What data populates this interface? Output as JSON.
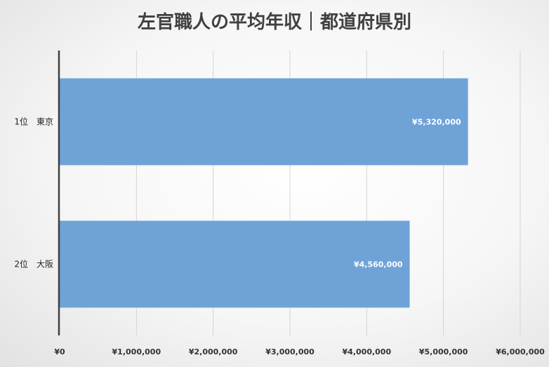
{
  "chart_data": {
    "type": "bar",
    "orientation": "horizontal",
    "title": "左官職人の平均年収｜都道府県別",
    "categories": [
      "1位　東京",
      "2位　大阪"
    ],
    "series": [
      {
        "values": [
          5320000,
          4560000
        ],
        "data_labels": [
          "¥5,320,000",
          "¥4,560,000"
        ]
      }
    ],
    "xlim": [
      0,
      6000000
    ],
    "x_ticks": [
      0,
      1000000,
      2000000,
      3000000,
      4000000,
      5000000,
      6000000
    ],
    "x_tick_labels": [
      "¥0",
      "¥1,000,000",
      "¥2,000,000",
      "¥3,000,000",
      "¥4,000,000",
      "¥5,000,000",
      "¥6,000,000"
    ],
    "grid": true,
    "bar_color": "#6fa3d8",
    "legend": "none"
  }
}
